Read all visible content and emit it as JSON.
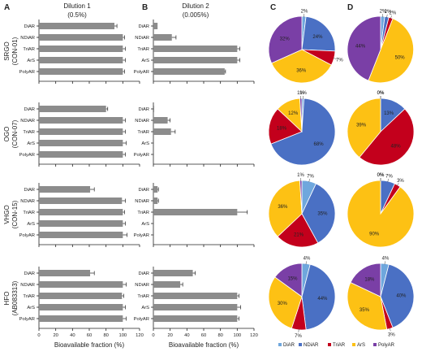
{
  "panel_letters": [
    "A",
    "B",
    "C",
    "D"
  ],
  "column_headers": [
    {
      "line1": "Dilution 1",
      "line2": "(0.5%)"
    },
    {
      "line1": "Dilution 2",
      "line2": "(0.005%)"
    }
  ],
  "row_labels": [
    {
      "line1": "SRGO",
      "line2": "(CON-01)"
    },
    {
      "line1": "OGO",
      "line2": "(CON-07)"
    },
    {
      "line1": "VHGO",
      "line2": "(CON-15)"
    },
    {
      "line1": "HFO",
      "line2": "(AB083313)"
    }
  ],
  "colors": {
    "bar": "#8c8c8c",
    "DiAR": "#6fa7dd",
    "NDiAR": "#4a70c4",
    "TriAR": "#c3001c",
    "ArS": "#fdc114",
    "PolyAR": "#7a3fa6"
  },
  "chart_data": [
    {
      "type": "bar",
      "orientation": "horizontal",
      "panel": "A",
      "categories": [
        "DiAR",
        "NDiAR",
        "TriAR",
        "ArS",
        "PolyAR"
      ],
      "xlabel": "Bioavailable fraction (%)",
      "xlim": [
        0,
        120
      ],
      "xticks": [
        0,
        20,
        40,
        60,
        80,
        100,
        120
      ],
      "series": [
        {
          "name": "SRGO (CON-01)",
          "values": [
            90,
            100,
            100,
            100,
            100
          ],
          "errors": [
            3,
            2,
            3,
            3,
            2
          ]
        },
        {
          "name": "OGO (CON-07)",
          "values": [
            80,
            100,
            100,
            100,
            100
          ],
          "errors": [
            2,
            3,
            3,
            4,
            3
          ]
        },
        {
          "name": "VHGO (CON-15)",
          "values": [
            61,
            99,
            100,
            100,
            100
          ],
          "errors": [
            5,
            4,
            2,
            3,
            5
          ]
        },
        {
          "name": "HFO (AB083313)",
          "values": [
            61,
            100,
            99,
            100,
            100
          ],
          "errors": [
            5,
            4,
            2,
            3,
            4
          ]
        }
      ]
    },
    {
      "type": "bar",
      "orientation": "horizontal",
      "panel": "B",
      "categories": [
        "DiAR",
        "NDiAR",
        "TriAR",
        "ArS",
        "PolyAR"
      ],
      "xlabel": "Bioavailable fraction (%)",
      "xlim": [
        0,
        120
      ],
      "xticks": [
        0,
        20,
        40,
        60,
        80,
        100,
        120
      ],
      "series": [
        {
          "name": "SRGO (CON-01)",
          "values": [
            5,
            22,
            100,
            100,
            85
          ],
          "errors": [
            0,
            5,
            3,
            3,
            1
          ]
        },
        {
          "name": "OGO (CON-07)",
          "values": [
            1,
            17,
            21,
            0,
            0
          ],
          "errors": [
            0,
            3,
            5,
            0,
            0
          ]
        },
        {
          "name": "VHGO (CON-15)",
          "values": [
            5,
            5,
            100,
            0,
            0
          ],
          "errors": [
            1,
            1,
            12,
            0,
            0
          ]
        },
        {
          "name": "HFO (AB083313)",
          "values": [
            47,
            32,
            100,
            100,
            100
          ],
          "errors": [
            3,
            3,
            2,
            4,
            2
          ]
        }
      ]
    },
    {
      "type": "pie",
      "panel": "C",
      "legend": [
        "DiAR",
        "NDiAR",
        "TriAR",
        "ArS",
        "PolyAR"
      ],
      "legend_placement": "bottom",
      "pies": [
        {
          "row": "SRGO (CON-01)",
          "values": [
            2,
            24,
            7,
            36,
            32
          ],
          "labels": [
            "2%",
            "24%",
            "7%",
            "36%",
            "32%"
          ]
        },
        {
          "row": "OGO (CON-07)",
          "values": [
            1,
            68,
            18,
            12,
            1
          ],
          "labels": [
            "1%",
            "68%",
            "18%",
            "12%",
            "1%"
          ]
        },
        {
          "row": "VHGO (CON-15)",
          "values": [
            7,
            35,
            21,
            36,
            1
          ],
          "labels": [
            "7%",
            "35%",
            "21%",
            "36%",
            "1%"
          ]
        },
        {
          "row": "HFO (AB083313)",
          "values": [
            4,
            44,
            7,
            30,
            15
          ],
          "labels": [
            "4%",
            "44%",
            "7%",
            "30%",
            "15%"
          ]
        }
      ]
    },
    {
      "type": "pie",
      "panel": "D",
      "legend": [
        "DiAR",
        "NDiAR",
        "TriAR",
        "ArS",
        "PolyAR"
      ],
      "legend_placement": "bottom",
      "pies": [
        {
          "row": "SRGO (CON-01)",
          "values": [
            2,
            2,
            2,
            50,
            44
          ],
          "labels": [
            "2%",
            "2%",
            "2%",
            "50%",
            "44%"
          ]
        },
        {
          "row": "OGO (CON-07)",
          "values": [
            0,
            13,
            48,
            39,
            0
          ],
          "labels": [
            "0%",
            "13%",
            "48%",
            "39%",
            "0%"
          ]
        },
        {
          "row": "VHGO (CON-15)",
          "values": [
            0,
            7,
            3,
            90,
            0
          ],
          "labels": [
            "0%",
            "7%",
            "3%",
            "90%",
            "0%"
          ]
        },
        {
          "row": "HFO (AB083313)",
          "values": [
            4,
            40,
            3,
            35,
            18
          ],
          "labels": [
            "4%",
            "40%",
            "3%",
            "35%",
            "18%"
          ]
        }
      ]
    }
  ]
}
